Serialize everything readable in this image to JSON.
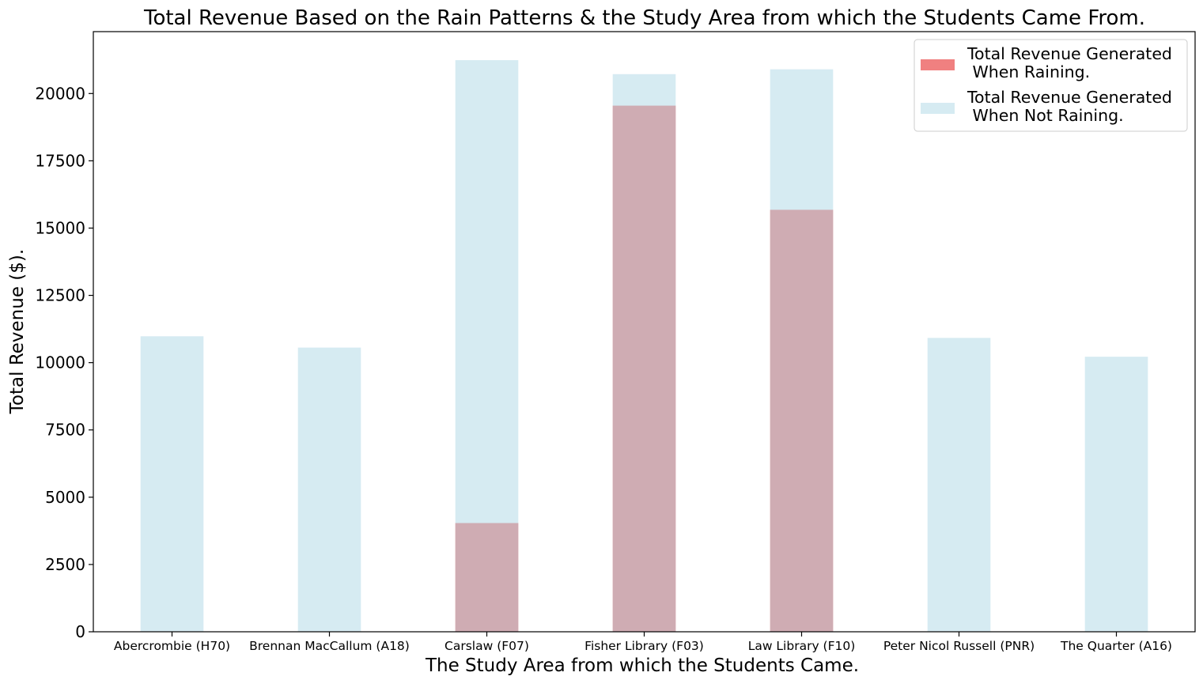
{
  "chart_data": {
    "type": "bar",
    "title": "Total Revenue Based on the Rain Patterns & the Study Area from which the Students Came From.",
    "xlabel": "The Study Area from which the Students Came.",
    "ylabel": "Total Revenue ($).",
    "categories": [
      "Abercrombie (H70)",
      "Brennan MacCallum (A18)",
      "Carslaw (F07)",
      "Fisher Library (F03)",
      "Law Library (F10)",
      "Peter Nicol Russell (PNR)",
      "The Quarter (A16)"
    ],
    "ylim": [
      0,
      22300
    ],
    "yticks": [
      0,
      2500,
      5000,
      7500,
      10000,
      12500,
      15000,
      17500,
      20000
    ],
    "grid": false,
    "legend_position": "top-right",
    "series": [
      {
        "name": "Total Revenue Generated\n When Raining.",
        "legend_lines": [
          "Total Revenue Generated",
          " When Raining."
        ],
        "color": "#f08080",
        "alpha": 1.0,
        "values": [
          0,
          0,
          4040,
          19550,
          15680,
          0,
          0
        ]
      },
      {
        "name": "Total Revenue Generated\n When Not Raining.",
        "legend_lines": [
          "Total Revenue Generated",
          " When Not Raining."
        ],
        "color": "#add8e6",
        "alpha": 0.5,
        "values": [
          10980,
          10560,
          21240,
          20720,
          20900,
          10920,
          10220
        ]
      }
    ]
  }
}
